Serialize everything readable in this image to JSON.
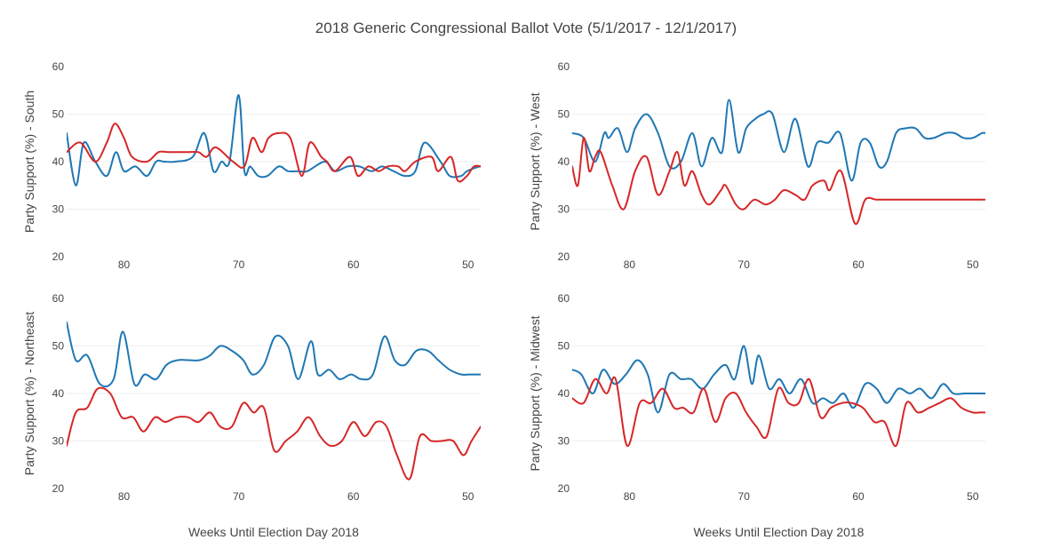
{
  "title": "2018 Generic Congressional Ballot Vote (5/1/2017 - 12/1/2017)",
  "colors": {
    "series_a": "#1f77b4",
    "series_b": "#d62728",
    "grid": "#eeeeee"
  },
  "chart_data": [
    {
      "type": "line",
      "ylabel": "Party Support (%) - South",
      "xlabel": "",
      "xlim": [
        85,
        48.9
      ],
      "ylim": [
        20,
        60
      ],
      "xticks": [
        80,
        70,
        60,
        50
      ],
      "yticks": [
        20,
        30,
        40,
        50,
        60
      ],
      "grid": true,
      "series": [
        {
          "color": "#1f77b4",
          "x": [
            85,
            84.2,
            83.5,
            82.5,
            81.5,
            80.7,
            80,
            79,
            78,
            77.2,
            76.5,
            75.5,
            74,
            73,
            72.2,
            71.5,
            70.8,
            70,
            69.5,
            69,
            68.3,
            67.5,
            66.5,
            65.7,
            64.8,
            64,
            62.5,
            61.6,
            60.5,
            59.5,
            58.4,
            57.5,
            56.5,
            55.5,
            54.6,
            53.8,
            52.4,
            51.6,
            50.6,
            50.1,
            49,
            48.9
          ],
          "values": [
            46,
            35,
            44,
            40,
            37,
            42,
            38,
            39,
            37,
            40,
            40,
            40,
            41,
            46,
            38,
            40,
            40,
            54,
            38,
            39,
            37,
            37,
            39,
            38,
            38,
            38,
            40,
            38,
            39,
            39,
            38,
            39,
            38,
            37,
            38,
            44,
            40,
            37,
            37,
            38,
            39,
            39
          ]
        },
        {
          "color": "#d62728",
          "x": [
            85,
            83.8,
            82.5,
            81.5,
            80.8,
            80,
            79.3,
            78,
            77,
            76.2,
            75.5,
            74.5,
            73.5,
            72.8,
            72,
            70.5,
            69.5,
            68.8,
            68,
            67.4,
            66.5,
            65.5,
            64.5,
            63.8,
            62.8,
            62.3,
            61.6,
            60.3,
            59.6,
            58.7,
            57.8,
            57,
            56.1,
            55.5,
            54.6,
            53.2,
            52.6,
            51.5,
            50.9,
            50.1,
            49.5,
            48.9
          ],
          "values": [
            42,
            44,
            40,
            44,
            48,
            45,
            41,
            40,
            42,
            42,
            42,
            42,
            42,
            41,
            43,
            40,
            39,
            45,
            42,
            45,
            46,
            45,
            37,
            44,
            41,
            40,
            38,
            41,
            37,
            39,
            38,
            39,
            39,
            38,
            40,
            41,
            38,
            41,
            36,
            37,
            39,
            39
          ]
        }
      ]
    },
    {
      "type": "line",
      "ylabel": "Party Support (%) - West",
      "xlabel": "",
      "xlim": [
        85,
        48.9
      ],
      "ylim": [
        20,
        60
      ],
      "xticks": [
        80,
        70,
        60,
        50
      ],
      "yticks": [
        20,
        30,
        40,
        50,
        60
      ],
      "grid": true,
      "series": [
        {
          "color": "#1f77b4",
          "x": [
            85,
            84,
            83,
            82.2,
            81.8,
            81,
            80.2,
            79.5,
            78.5,
            77.5,
            76.5,
            75.5,
            74.5,
            73.7,
            72.8,
            71.9,
            71.3,
            70.5,
            69.8,
            69,
            68.3,
            67.5,
            66.5,
            65.5,
            64.4,
            63.6,
            62.6,
            61.6,
            60.6,
            59.8,
            59,
            58.2,
            57.5,
            56.7,
            55.9,
            55,
            54.2,
            53.4,
            52.4,
            51.6,
            50.8,
            50,
            49.2,
            48.9
          ],
          "values": [
            46,
            45,
            40,
            46,
            45,
            47,
            42,
            47,
            50,
            46,
            39,
            40,
            46,
            39,
            45,
            42,
            53,
            42,
            47,
            49,
            50,
            50,
            42,
            49,
            39,
            44,
            44,
            46,
            36,
            44,
            44,
            39,
            40,
            46,
            47,
            47,
            45,
            45,
            46,
            46,
            45,
            45,
            46,
            46
          ]
        },
        {
          "color": "#d62728",
          "x": [
            85,
            84.5,
            84,
            83.5,
            83,
            82.5,
            81.5,
            80.5,
            79.5,
            78.5,
            77.5,
            76.5,
            75.8,
            75.2,
            74.5,
            73.7,
            73,
            72,
            71.6,
            70.7,
            70,
            69.1,
            68.1,
            67.3,
            66.5,
            65.5,
            64.7,
            64,
            63,
            62.5,
            61.5,
            60.3,
            59.4,
            58.4,
            57.4,
            56.5,
            55.7,
            55,
            54.5,
            53.8,
            53,
            52.3,
            51.6,
            51.2,
            50.4,
            49.9,
            49,
            48.9
          ],
          "values": [
            39,
            35,
            45,
            38,
            41,
            42,
            35,
            30,
            38,
            41,
            33,
            38,
            42,
            35,
            38,
            33,
            31,
            34,
            35,
            31,
            30,
            32,
            31,
            32,
            34,
            33,
            32,
            35,
            36,
            34,
            38,
            27,
            32,
            32,
            32,
            32,
            32,
            32,
            32,
            32,
            32,
            32,
            32,
            32,
            32,
            32,
            32,
            32
          ]
        }
      ]
    },
    {
      "type": "line",
      "ylabel": "Party Support (%) - Northeast",
      "xlabel": "Weeks Until Election Day 2018",
      "xlim": [
        85,
        48.9
      ],
      "ylim": [
        20,
        60
      ],
      "xticks": [
        80,
        70,
        60,
        50
      ],
      "yticks": [
        20,
        30,
        40,
        50,
        60
      ],
      "grid": true,
      "series": [
        {
          "color": "#1f77b4",
          "x": [
            85,
            84.2,
            83.2,
            82.1,
            80.9,
            80.1,
            79.1,
            78.2,
            77.2,
            76.3,
            75.3,
            74.3,
            73.4,
            72.5,
            71.6,
            70.6,
            69.6,
            68.8,
            67.8,
            66.8,
            65.7,
            64.8,
            63.7,
            63.1,
            62.1,
            61.2,
            60.2,
            59.3,
            58.3,
            57.3,
            56.4,
            55.5,
            54.5,
            53.5,
            52.6,
            51.6,
            50.6,
            49.8,
            48.9
          ],
          "values": [
            55,
            47,
            48,
            42,
            43,
            53,
            42,
            44,
            43,
            46,
            47,
            47,
            47,
            48,
            50,
            49,
            47,
            44,
            46,
            52,
            50,
            43,
            51,
            44,
            45,
            43,
            44,
            43,
            44,
            52,
            47,
            46,
            49,
            49,
            47,
            45,
            44,
            44,
            44
          ]
        },
        {
          "color": "#d62728",
          "x": [
            85,
            84.2,
            83.2,
            82.3,
            81.2,
            80.2,
            79.2,
            78.3,
            77.3,
            76.4,
            75.4,
            74.4,
            73.5,
            72.5,
            71.6,
            70.6,
            69.6,
            68.7,
            67.8,
            66.9,
            65.9,
            64.9,
            63.9,
            62.9,
            62,
            61,
            60,
            59,
            58,
            57.1,
            56.2,
            55.1,
            54.2,
            53.2,
            52.3,
            51.3,
            50.4,
            49.7,
            48.9
          ],
          "values": [
            29,
            36,
            37,
            41,
            40,
            35,
            35,
            32,
            35,
            34,
            35,
            35,
            34,
            36,
            33,
            33,
            38,
            36,
            37,
            28,
            30,
            32,
            35,
            31,
            29,
            30,
            34,
            31,
            34,
            33,
            27,
            22,
            31,
            30,
            30,
            30,
            27,
            30,
            33
          ]
        }
      ]
    },
    {
      "type": "line",
      "ylabel": "Party Support (%) - Midwest",
      "xlabel": "Weeks Until Election Day 2018",
      "xlim": [
        85,
        48.9
      ],
      "ylim": [
        20,
        60
      ],
      "xticks": [
        80,
        70,
        60,
        50
      ],
      "yticks": [
        20,
        30,
        40,
        50,
        60
      ],
      "grid": true,
      "series": [
        {
          "color": "#1f77b4",
          "x": [
            85,
            84.2,
            83.2,
            82.3,
            81.3,
            80.3,
            79.3,
            78.4,
            77.5,
            76.5,
            75.5,
            74.6,
            73.6,
            72.6,
            71.6,
            70.8,
            70,
            69.3,
            68.7,
            67.8,
            66.9,
            66,
            65,
            64,
            63.1,
            62.2,
            61.3,
            60.4,
            59.4,
            58.4,
            57.5,
            56.5,
            55.5,
            54.6,
            53.6,
            52.6,
            51.7,
            50.7,
            49.8,
            48.9
          ],
          "values": [
            45,
            44,
            40,
            45,
            42,
            44,
            47,
            44,
            36,
            44,
            43,
            43,
            41,
            44,
            46,
            43,
            50,
            42,
            48,
            41,
            43,
            40,
            43,
            38,
            39,
            38,
            40,
            37,
            42,
            41,
            38,
            41,
            40,
            41,
            39,
            42,
            40,
            40,
            40,
            40
          ]
        },
        {
          "color": "#d62728",
          "x": [
            85,
            84,
            83,
            82,
            81.2,
            80.2,
            79.1,
            78.1,
            77.1,
            76.1,
            75.3,
            74.4,
            73.5,
            72.5,
            71.6,
            70.7,
            69.8,
            68.9,
            68,
            67,
            66.1,
            65.2,
            64.3,
            63.3,
            62.4,
            61.4,
            60.6,
            59.6,
            58.6,
            57.7,
            56.7,
            55.8,
            54.8,
            53.8,
            52.9,
            51.9,
            51,
            50,
            49.4,
            48.9
          ],
          "values": [
            39,
            38,
            43,
            40,
            43,
            29,
            38,
            38,
            41,
            37,
            37,
            36,
            41,
            34,
            39,
            40,
            36,
            33,
            31,
            41,
            38,
            38,
            43,
            35,
            37,
            38,
            38,
            37,
            34,
            34,
            29,
            38,
            36,
            37,
            38,
            39,
            37,
            36,
            36,
            36
          ]
        }
      ]
    }
  ]
}
